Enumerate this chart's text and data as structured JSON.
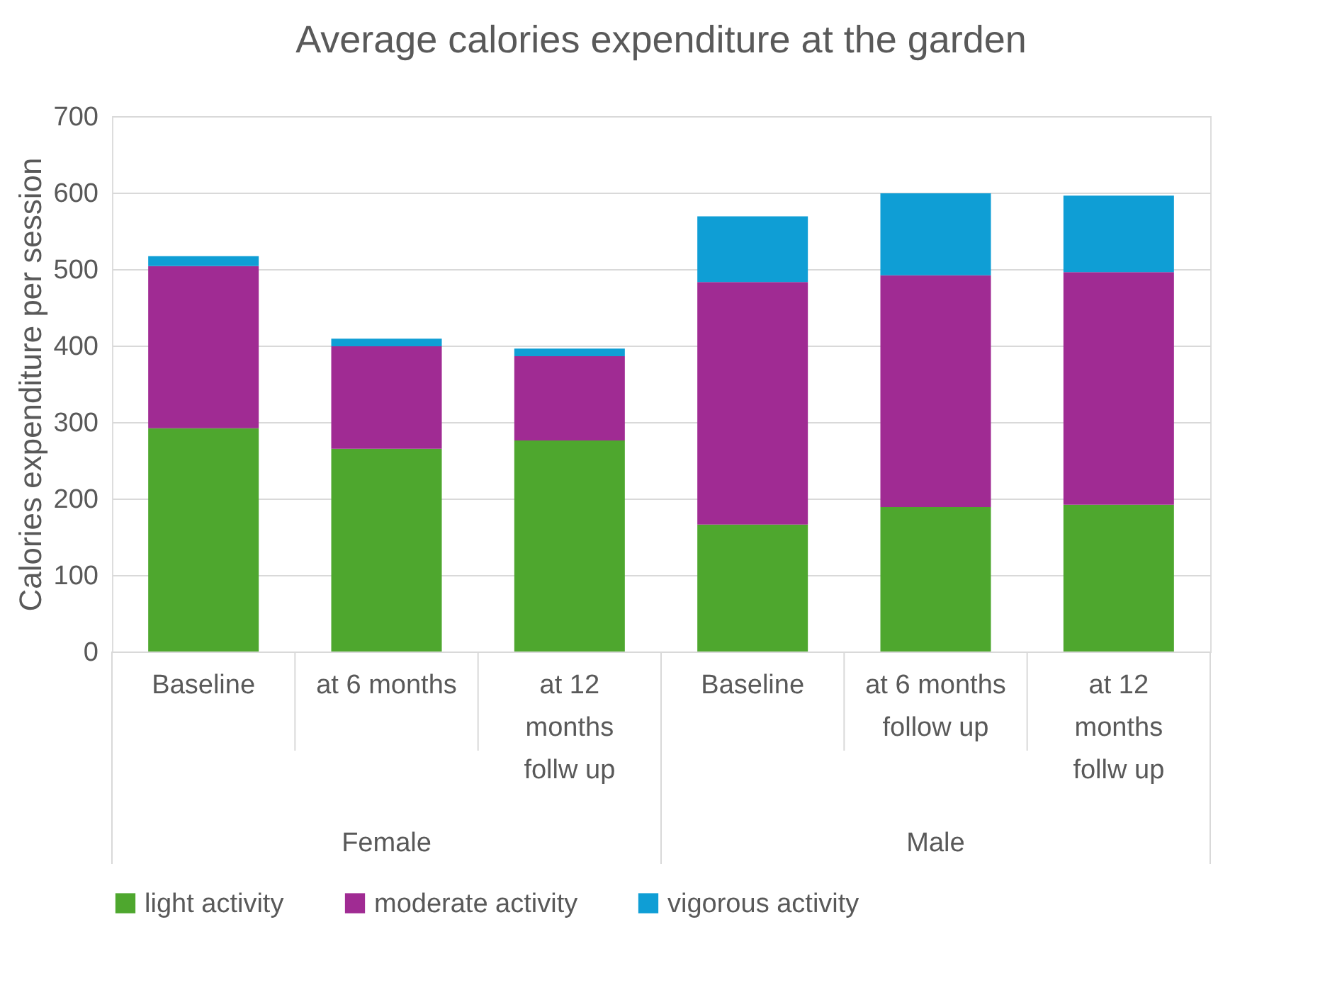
{
  "chart_data": {
    "type": "bar",
    "stacked": true,
    "title": "Average calories expenditure at the garden",
    "ylabel": "Calories expenditure per session",
    "categories": [
      "Baseline",
      "at 6 months",
      "at 12 months follw up",
      "Baseline",
      "at 6 months follow up",
      "at 12 months follw up"
    ],
    "annotations": [
      "Female",
      "Male"
    ],
    "series": [
      {
        "name": "light activity",
        "color": "#4ea72e",
        "values": [
          292,
          265,
          276,
          166,
          189,
          192
        ]
      },
      {
        "name": "moderate activity",
        "color": "#a02b93",
        "values": [
          212,
          134,
          110,
          317,
          303,
          304
        ]
      },
      {
        "name": "vigorous activity",
        "color": "#0f9ed5",
        "values": [
          13,
          10,
          10,
          86,
          107,
          100
        ]
      }
    ],
    "ylim": [
      0,
      700
    ],
    "yticks": [
      0,
      100,
      200,
      300,
      400,
      500,
      600,
      700
    ],
    "grid": "y",
    "legend": "bottom"
  }
}
